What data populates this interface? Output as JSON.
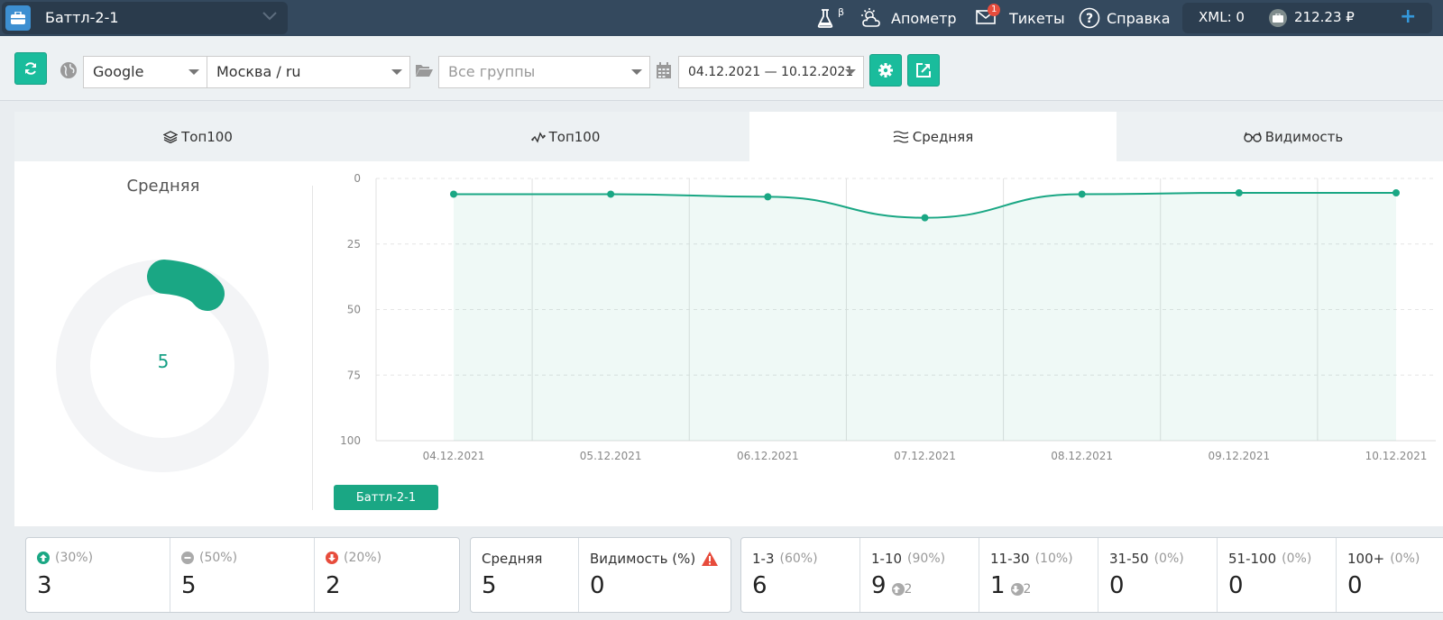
{
  "header": {
    "project": "Баттл-2-1",
    "beta_label": "β",
    "apometr": "Апометр",
    "tickets": "Тикеты",
    "tickets_badge": "1",
    "help": "Справка",
    "xml": "XML: 0",
    "balance": "212.23 ₽"
  },
  "toolbar": {
    "search_engine": "Google",
    "region": "Москва / ru",
    "group_placeholder": "Все группы",
    "date_range": "04.12.2021 — 10.12.2021"
  },
  "tabs": [
    {
      "label": "Топ100",
      "icon": "layers-icon",
      "active": false
    },
    {
      "label": "Топ100",
      "icon": "pulse-icon",
      "active": false
    },
    {
      "label": "Средняя",
      "icon": "wavy-lines-icon",
      "active": true
    },
    {
      "label": "Видимость",
      "icon": "glasses-icon",
      "active": false
    }
  ],
  "gauge": {
    "title": "Средняя",
    "value": "5"
  },
  "chart_data": {
    "type": "area",
    "x": [
      "04.12.2021",
      "05.12.2021",
      "06.12.2021",
      "07.12.2021",
      "08.12.2021",
      "09.12.2021",
      "10.12.2021"
    ],
    "series": [
      {
        "name": "Баттл-2-1",
        "values": [
          6,
          6,
          7,
          15,
          6,
          5.5,
          5.5
        ]
      }
    ],
    "yticks": [
      "0",
      "25",
      "50",
      "75",
      "100"
    ],
    "ylim": [
      0,
      100
    ],
    "y_inverted": true,
    "color": "#1aa784",
    "grid": true,
    "legend": "bottom-left"
  },
  "stats": {
    "up": {
      "pct": "(30%)",
      "value": "3"
    },
    "same": {
      "pct": "(50%)",
      "value": "5"
    },
    "down": {
      "pct": "(20%)",
      "value": "2"
    },
    "average": {
      "label": "Средняя",
      "value": "5"
    },
    "visibility": {
      "label": "Видимость (%)",
      "value": "0"
    },
    "ranges": [
      {
        "label": "1-3",
        "pct": "(60%)",
        "value": "6",
        "delta": ""
      },
      {
        "label": "1-10",
        "pct": "(90%)",
        "value": "9",
        "delta": "2",
        "delta_dir": "up"
      },
      {
        "label": "11-30",
        "pct": "(10%)",
        "value": "1",
        "delta": "2",
        "delta_dir": "down"
      },
      {
        "label": "31-50",
        "pct": "(0%)",
        "value": "0",
        "delta": ""
      },
      {
        "label": "51-100",
        "pct": "(0%)",
        "value": "0",
        "delta": ""
      },
      {
        "label": "100+",
        "pct": "(0%)",
        "value": "0",
        "delta": ""
      }
    ]
  }
}
